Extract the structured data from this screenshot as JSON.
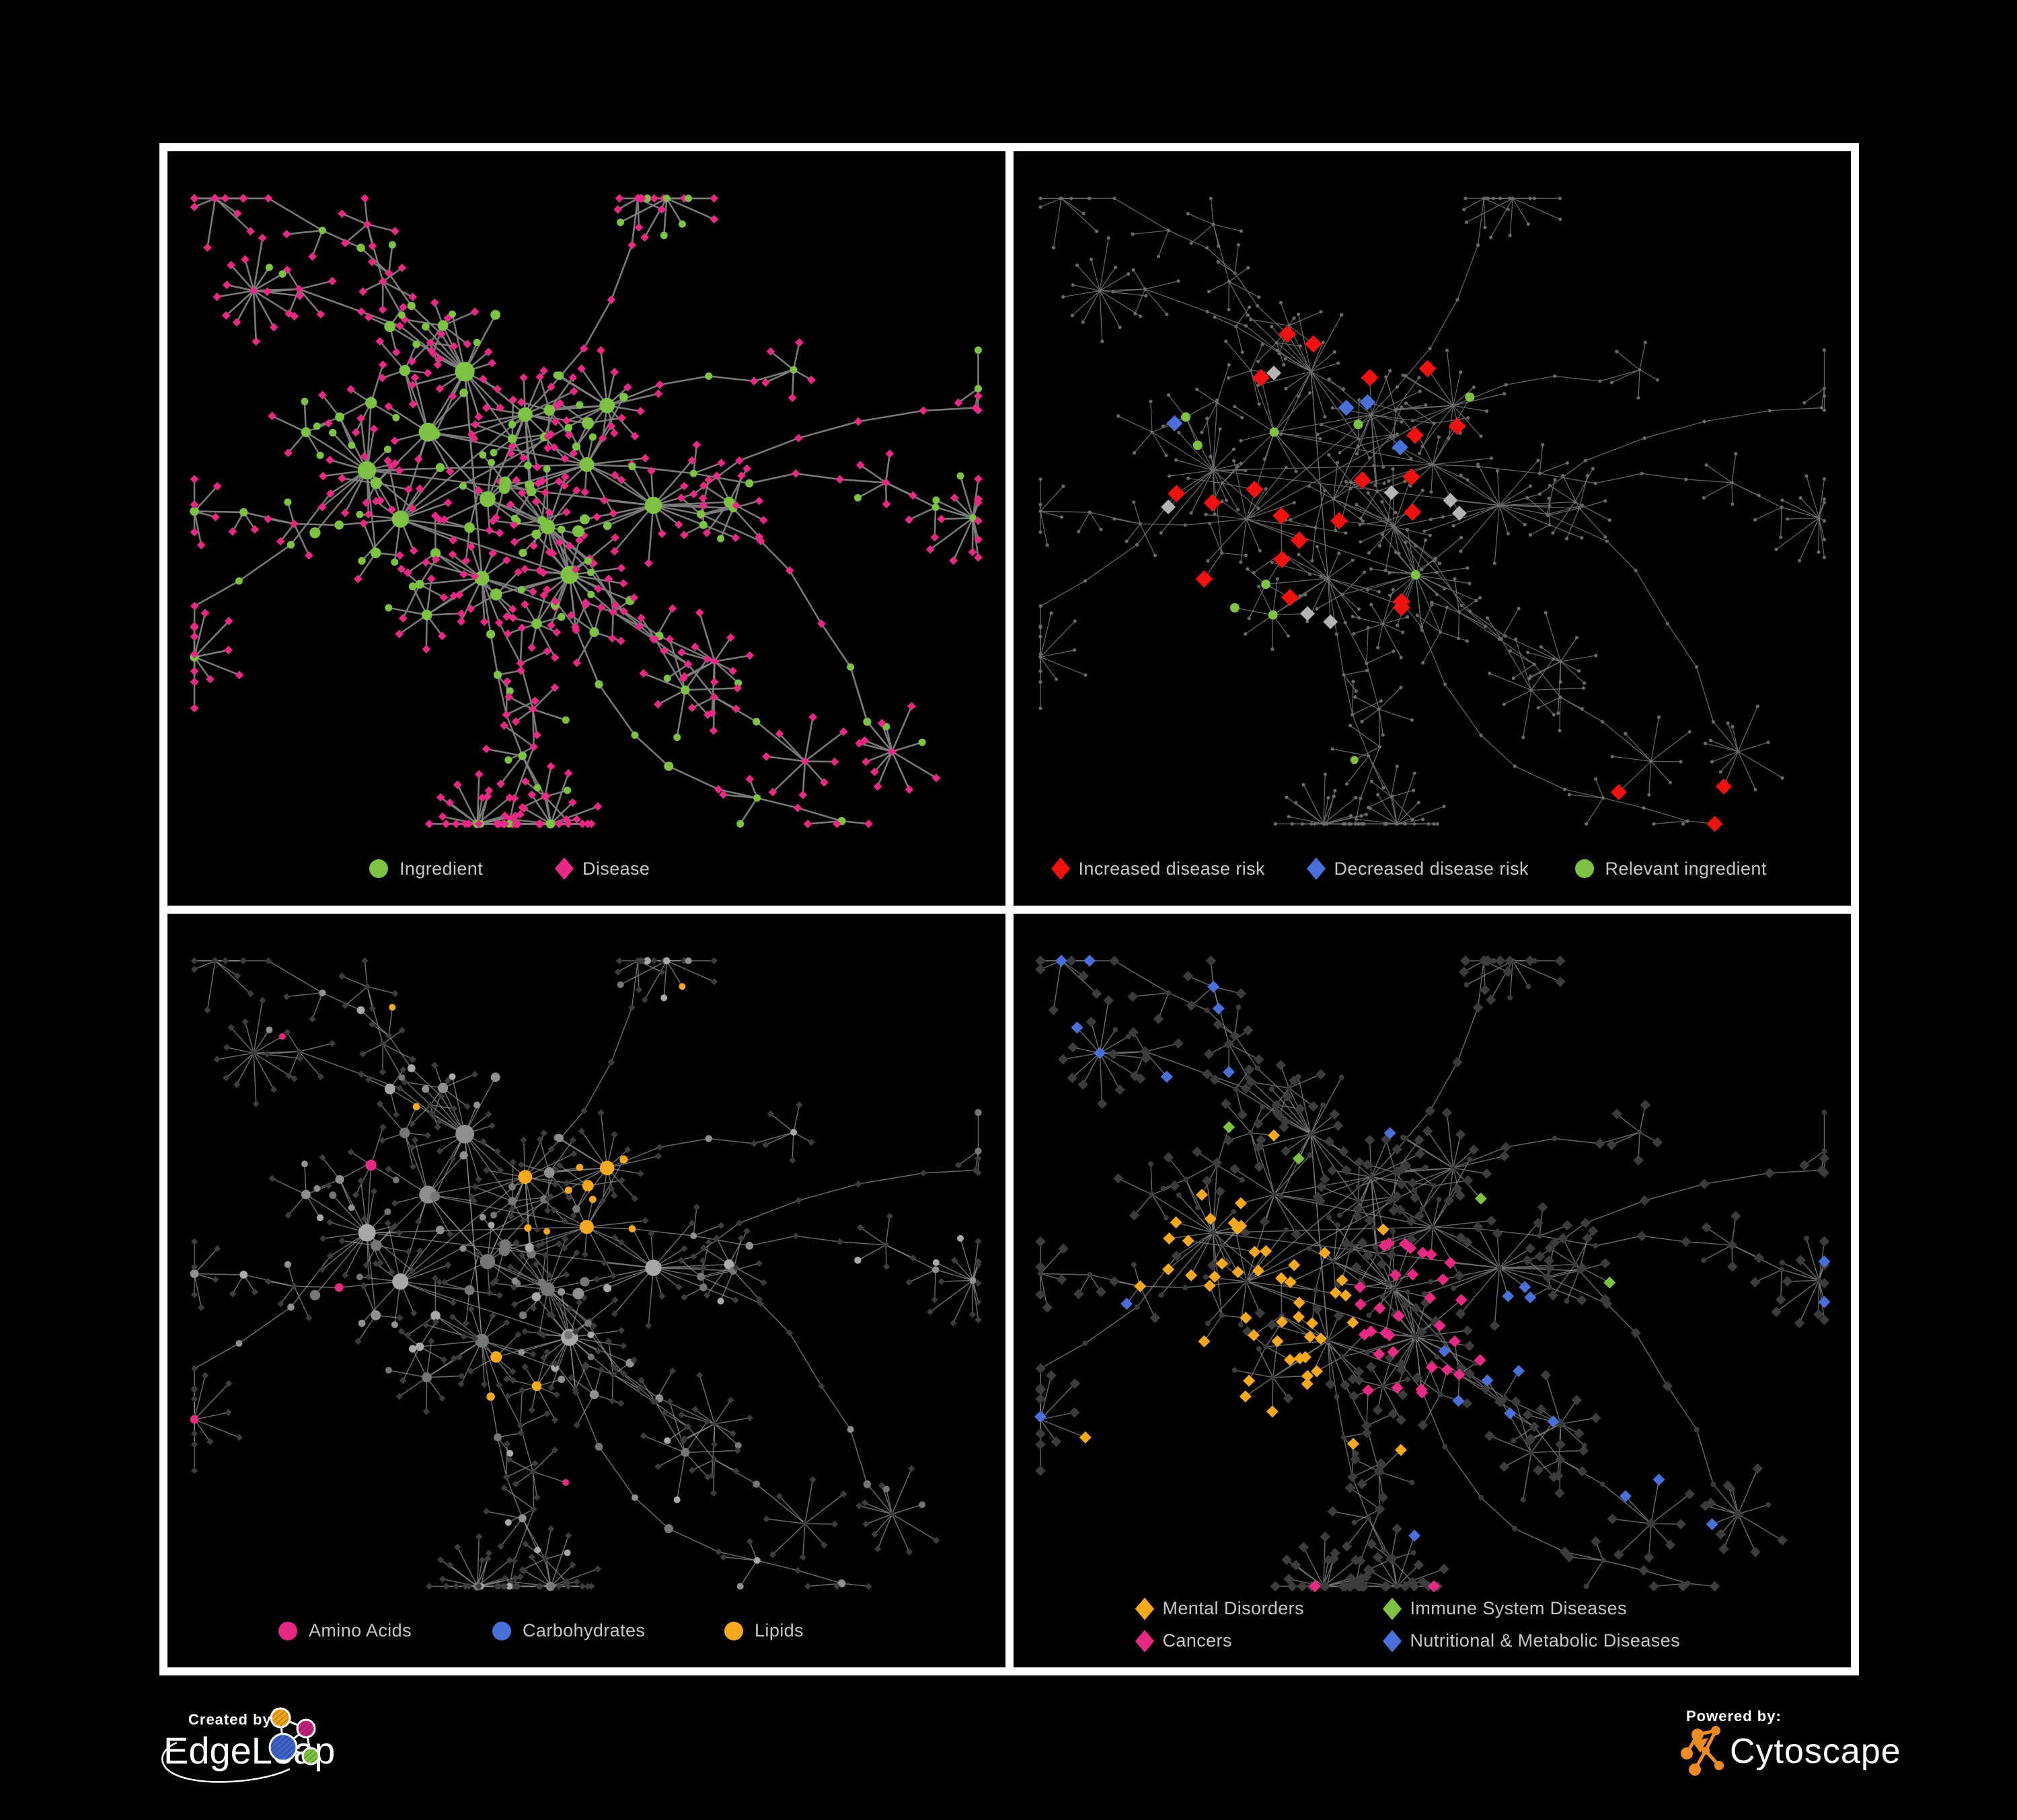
{
  "page": {
    "background": "#000000",
    "panel_border": "#FFFFFF",
    "legend_text_color": "#C6C6C6"
  },
  "panels": [
    {
      "id": "ingredient-disease",
      "legend": [
        {
          "label": "Ingredient",
          "shape": "circle",
          "color": "#7DC242"
        },
        {
          "label": "Disease",
          "shape": "diamond",
          "color": "#E62A84"
        }
      ]
    },
    {
      "id": "disease-risk",
      "legend": [
        {
          "label": "Increased disease risk",
          "shape": "diamond",
          "color": "#F01111"
        },
        {
          "label": "Decreased disease risk",
          "shape": "diamond",
          "color": "#4A6FD8"
        },
        {
          "label": "Relevant ingredient",
          "shape": "circle",
          "color": "#7DC242"
        }
      ]
    },
    {
      "id": "nutrient-classes",
      "legend": [
        {
          "label": "Amino Acids",
          "shape": "circle",
          "color": "#E62A84"
        },
        {
          "label": "Carbohydrates",
          "shape": "circle",
          "color": "#4A6FD8"
        },
        {
          "label": "Lipids",
          "shape": "circle",
          "color": "#F6A81F"
        }
      ]
    },
    {
      "id": "disease-categories",
      "legend": [
        {
          "label": "Mental Disorders",
          "shape": "diamond",
          "color": "#F6A81F"
        },
        {
          "label": "Immune System Diseases",
          "shape": "diamond",
          "color": "#7DC242"
        },
        {
          "label": "Cancers",
          "shape": "diamond",
          "color": "#E62A84"
        },
        {
          "label": "Nutritional & Metabolic Diseases",
          "shape": "diamond",
          "color": "#4A6FD8"
        }
      ]
    }
  ],
  "network_styles": {
    "p1": {
      "edge": "#808080",
      "edge_width": 2.6,
      "ingredient": "#7DC242",
      "disease": "#E62A84"
    },
    "p2": {
      "edge": "#6E6E6E",
      "edge_width": 1.3,
      "base": "#6A6A6A",
      "increased": "#F01111",
      "decreased": "#4A6FD8",
      "neutral": "#B3B3B3",
      "relevant": "#7DC242"
    },
    "p3": {
      "edge": "#979797",
      "edge_width": 1.5,
      "disease": "#3C3C3C",
      "grays": [
        "#A8A8A8",
        "#8F8F8F",
        "#767676"
      ],
      "amino": "#E62A84",
      "carb": "#4A6FD8",
      "lipid": "#F6A81F"
    },
    "p4": {
      "edge": "#7E7E7E",
      "edge_width": 1.5,
      "base": "#3C3C3C",
      "mental": "#F6A81F",
      "immune": "#7DC242",
      "cancer": "#E62A84",
      "nutritional": "#4A6FD8"
    }
  },
  "footer": {
    "created_by_label": "Created by:",
    "created_by_brand": "EdgeLeap",
    "powered_by_label": "Powered by:",
    "powered_by_brand": "Cytoscape",
    "edgeleap_logo_colors": {
      "orange": "#F0A31F",
      "magenta": "#C2247C",
      "blue": "#3F63C8",
      "green": "#7CC141"
    },
    "cytoscape_logo_color": "#EE8B22"
  }
}
